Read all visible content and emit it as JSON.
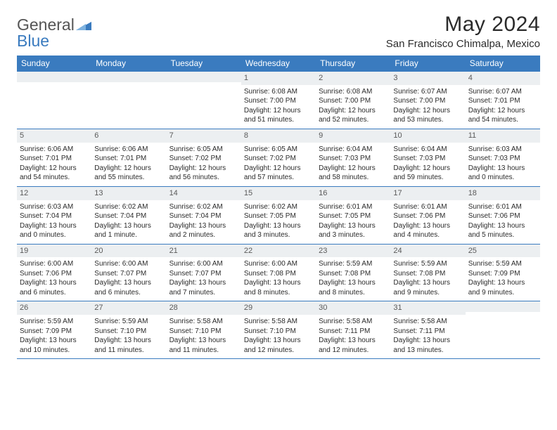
{
  "brand": {
    "word1": "General",
    "word2": "Blue"
  },
  "title": "May 2024",
  "location": "San Francisco Chimalpa, Mexico",
  "colors": {
    "header_bg": "#3a7bbf",
    "daynum_bg": "#eceff1",
    "text": "#2b2b2b"
  },
  "daysOfWeek": [
    "Sunday",
    "Monday",
    "Tuesday",
    "Wednesday",
    "Thursday",
    "Friday",
    "Saturday"
  ],
  "weeks": [
    [
      {
        "num": "",
        "sunrise": "",
        "sunset": "",
        "dayl1": "",
        "dayl2": ""
      },
      {
        "num": "",
        "sunrise": "",
        "sunset": "",
        "dayl1": "",
        "dayl2": ""
      },
      {
        "num": "",
        "sunrise": "",
        "sunset": "",
        "dayl1": "",
        "dayl2": ""
      },
      {
        "num": "1",
        "sunrise": "Sunrise: 6:08 AM",
        "sunset": "Sunset: 7:00 PM",
        "dayl1": "Daylight: 12 hours",
        "dayl2": "and 51 minutes."
      },
      {
        "num": "2",
        "sunrise": "Sunrise: 6:08 AM",
        "sunset": "Sunset: 7:00 PM",
        "dayl1": "Daylight: 12 hours",
        "dayl2": "and 52 minutes."
      },
      {
        "num": "3",
        "sunrise": "Sunrise: 6:07 AM",
        "sunset": "Sunset: 7:00 PM",
        "dayl1": "Daylight: 12 hours",
        "dayl2": "and 53 minutes."
      },
      {
        "num": "4",
        "sunrise": "Sunrise: 6:07 AM",
        "sunset": "Sunset: 7:01 PM",
        "dayl1": "Daylight: 12 hours",
        "dayl2": "and 54 minutes."
      }
    ],
    [
      {
        "num": "5",
        "sunrise": "Sunrise: 6:06 AM",
        "sunset": "Sunset: 7:01 PM",
        "dayl1": "Daylight: 12 hours",
        "dayl2": "and 54 minutes."
      },
      {
        "num": "6",
        "sunrise": "Sunrise: 6:06 AM",
        "sunset": "Sunset: 7:01 PM",
        "dayl1": "Daylight: 12 hours",
        "dayl2": "and 55 minutes."
      },
      {
        "num": "7",
        "sunrise": "Sunrise: 6:05 AM",
        "sunset": "Sunset: 7:02 PM",
        "dayl1": "Daylight: 12 hours",
        "dayl2": "and 56 minutes."
      },
      {
        "num": "8",
        "sunrise": "Sunrise: 6:05 AM",
        "sunset": "Sunset: 7:02 PM",
        "dayl1": "Daylight: 12 hours",
        "dayl2": "and 57 minutes."
      },
      {
        "num": "9",
        "sunrise": "Sunrise: 6:04 AM",
        "sunset": "Sunset: 7:03 PM",
        "dayl1": "Daylight: 12 hours",
        "dayl2": "and 58 minutes."
      },
      {
        "num": "10",
        "sunrise": "Sunrise: 6:04 AM",
        "sunset": "Sunset: 7:03 PM",
        "dayl1": "Daylight: 12 hours",
        "dayl2": "and 59 minutes."
      },
      {
        "num": "11",
        "sunrise": "Sunrise: 6:03 AM",
        "sunset": "Sunset: 7:03 PM",
        "dayl1": "Daylight: 13 hours",
        "dayl2": "and 0 minutes."
      }
    ],
    [
      {
        "num": "12",
        "sunrise": "Sunrise: 6:03 AM",
        "sunset": "Sunset: 7:04 PM",
        "dayl1": "Daylight: 13 hours",
        "dayl2": "and 0 minutes."
      },
      {
        "num": "13",
        "sunrise": "Sunrise: 6:02 AM",
        "sunset": "Sunset: 7:04 PM",
        "dayl1": "Daylight: 13 hours",
        "dayl2": "and 1 minute."
      },
      {
        "num": "14",
        "sunrise": "Sunrise: 6:02 AM",
        "sunset": "Sunset: 7:04 PM",
        "dayl1": "Daylight: 13 hours",
        "dayl2": "and 2 minutes."
      },
      {
        "num": "15",
        "sunrise": "Sunrise: 6:02 AM",
        "sunset": "Sunset: 7:05 PM",
        "dayl1": "Daylight: 13 hours",
        "dayl2": "and 3 minutes."
      },
      {
        "num": "16",
        "sunrise": "Sunrise: 6:01 AM",
        "sunset": "Sunset: 7:05 PM",
        "dayl1": "Daylight: 13 hours",
        "dayl2": "and 3 minutes."
      },
      {
        "num": "17",
        "sunrise": "Sunrise: 6:01 AM",
        "sunset": "Sunset: 7:06 PM",
        "dayl1": "Daylight: 13 hours",
        "dayl2": "and 4 minutes."
      },
      {
        "num": "18",
        "sunrise": "Sunrise: 6:01 AM",
        "sunset": "Sunset: 7:06 PM",
        "dayl1": "Daylight: 13 hours",
        "dayl2": "and 5 minutes."
      }
    ],
    [
      {
        "num": "19",
        "sunrise": "Sunrise: 6:00 AM",
        "sunset": "Sunset: 7:06 PM",
        "dayl1": "Daylight: 13 hours",
        "dayl2": "and 6 minutes."
      },
      {
        "num": "20",
        "sunrise": "Sunrise: 6:00 AM",
        "sunset": "Sunset: 7:07 PM",
        "dayl1": "Daylight: 13 hours",
        "dayl2": "and 6 minutes."
      },
      {
        "num": "21",
        "sunrise": "Sunrise: 6:00 AM",
        "sunset": "Sunset: 7:07 PM",
        "dayl1": "Daylight: 13 hours",
        "dayl2": "and 7 minutes."
      },
      {
        "num": "22",
        "sunrise": "Sunrise: 6:00 AM",
        "sunset": "Sunset: 7:08 PM",
        "dayl1": "Daylight: 13 hours",
        "dayl2": "and 8 minutes."
      },
      {
        "num": "23",
        "sunrise": "Sunrise: 5:59 AM",
        "sunset": "Sunset: 7:08 PM",
        "dayl1": "Daylight: 13 hours",
        "dayl2": "and 8 minutes."
      },
      {
        "num": "24",
        "sunrise": "Sunrise: 5:59 AM",
        "sunset": "Sunset: 7:08 PM",
        "dayl1": "Daylight: 13 hours",
        "dayl2": "and 9 minutes."
      },
      {
        "num": "25",
        "sunrise": "Sunrise: 5:59 AM",
        "sunset": "Sunset: 7:09 PM",
        "dayl1": "Daylight: 13 hours",
        "dayl2": "and 9 minutes."
      }
    ],
    [
      {
        "num": "26",
        "sunrise": "Sunrise: 5:59 AM",
        "sunset": "Sunset: 7:09 PM",
        "dayl1": "Daylight: 13 hours",
        "dayl2": "and 10 minutes."
      },
      {
        "num": "27",
        "sunrise": "Sunrise: 5:59 AM",
        "sunset": "Sunset: 7:10 PM",
        "dayl1": "Daylight: 13 hours",
        "dayl2": "and 11 minutes."
      },
      {
        "num": "28",
        "sunrise": "Sunrise: 5:58 AM",
        "sunset": "Sunset: 7:10 PM",
        "dayl1": "Daylight: 13 hours",
        "dayl2": "and 11 minutes."
      },
      {
        "num": "29",
        "sunrise": "Sunrise: 5:58 AM",
        "sunset": "Sunset: 7:10 PM",
        "dayl1": "Daylight: 13 hours",
        "dayl2": "and 12 minutes."
      },
      {
        "num": "30",
        "sunrise": "Sunrise: 5:58 AM",
        "sunset": "Sunset: 7:11 PM",
        "dayl1": "Daylight: 13 hours",
        "dayl2": "and 12 minutes."
      },
      {
        "num": "31",
        "sunrise": "Sunrise: 5:58 AM",
        "sunset": "Sunset: 7:11 PM",
        "dayl1": "Daylight: 13 hours",
        "dayl2": "and 13 minutes."
      },
      {
        "num": "",
        "sunrise": "",
        "sunset": "",
        "dayl1": "",
        "dayl2": ""
      }
    ]
  ]
}
